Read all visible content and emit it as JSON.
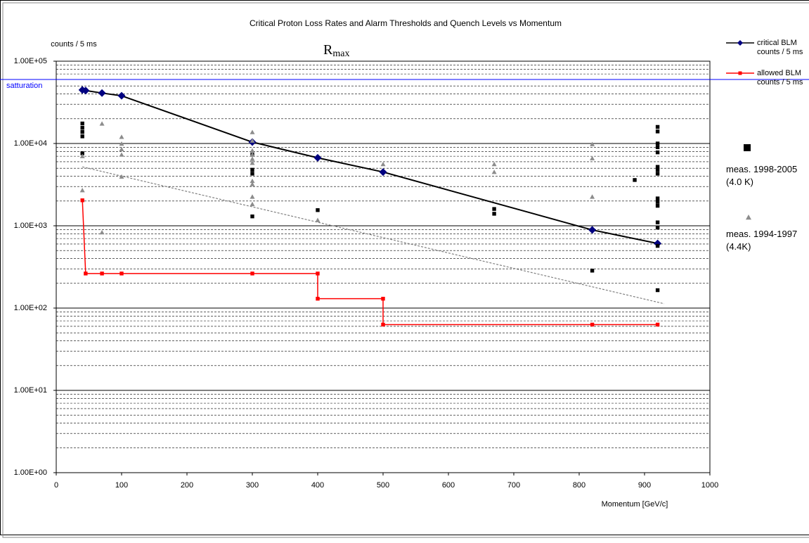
{
  "chart_data": {
    "type": "scatter",
    "title": "Critical Proton Loss Rates and Alarm Thresholds and Quench Levels vs Momentum",
    "subtitle": {
      "base": "R",
      "sub": "max"
    },
    "y_label": "counts / 5 ms",
    "x_label": "Momentum [GeV/c]",
    "xlim": [
      0,
      1000
    ],
    "xticks": [
      0,
      100,
      200,
      300,
      400,
      500,
      600,
      700,
      800,
      900,
      1000
    ],
    "ylim": [
      1,
      100000
    ],
    "log_y": true,
    "grid": true,
    "yticks": [
      {
        "value": 1,
        "label": "1.00E+00"
      },
      {
        "value": 10,
        "label": "1.00E+01"
      },
      {
        "value": 100,
        "label": "1.00E+02"
      },
      {
        "value": 1000,
        "label": "1.00E+03"
      },
      {
        "value": 10000,
        "label": "1.00E+04"
      },
      {
        "value": 100000,
        "label": "1.00E+05"
      }
    ],
    "yminor_ticks": [
      2,
      3,
      4,
      5,
      6,
      7,
      8,
      9,
      20,
      30,
      40,
      50,
      60,
      70,
      80,
      90,
      200,
      300,
      400,
      500,
      600,
      700,
      800,
      900,
      2000,
      3000,
      4000,
      5000,
      6000,
      7000,
      8000,
      9000,
      20000,
      30000,
      40000,
      50000,
      60000,
      70000,
      80000,
      90000
    ],
    "saturation": {
      "text": "satturation",
      "value": 60000,
      "color": "#0000ff"
    },
    "trendline": {
      "x": [
        40,
        930
      ],
      "values": [
        5200,
        113
      ],
      "color": "#808080"
    },
    "legend": "right",
    "series": [
      {
        "name": "critical BLM counts / 5 ms",
        "color": "#000080",
        "line_color": "#000000",
        "marker": "diamond",
        "line": true,
        "x": [
          40,
          45,
          70,
          100,
          300,
          400,
          500,
          820,
          920
        ],
        "values": [
          44700,
          44000,
          41000,
          38000,
          10400,
          6700,
          4500,
          890,
          610
        ]
      },
      {
        "name": "allowed BLM counts / 5 ms",
        "color": "#ff0000",
        "line_color": "#ff0000",
        "marker": "square",
        "line": true,
        "x": [
          40,
          45,
          70,
          100,
          300,
          400,
          400,
          500,
          500,
          820,
          920
        ],
        "values": [
          2040,
          263,
          263,
          263,
          263,
          263,
          130,
          130,
          63,
          63,
          63
        ]
      },
      {
        "name": "meas. 1998-2005 (4.0 K)",
        "color": "#000000",
        "marker": "square",
        "line": false,
        "x": [
          40,
          40,
          40,
          40,
          40,
          300,
          300,
          300,
          300,
          400,
          670,
          670,
          820,
          885,
          920,
          920,
          920,
          920,
          920,
          920,
          920,
          920,
          920,
          920,
          920,
          920,
          920,
          920,
          920
        ],
        "values": [
          17500,
          15500,
          13800,
          12200,
          7600,
          7300,
          4800,
          4300,
          1300,
          1550,
          1600,
          1400,
          285,
          3600,
          15900,
          14000,
          10000,
          9000,
          7800,
          5200,
          4800,
          4300,
          2150,
          1950,
          1750,
          1100,
          950,
          570,
          165
        ]
      },
      {
        "name": "meas. 1994-1997 (4.4K)",
        "color": "#8c8c8c",
        "marker": "triangle",
        "line": false,
        "x": [
          40,
          40,
          70,
          70,
          100,
          100,
          100,
          100,
          100,
          300,
          300,
          300,
          300,
          300,
          300,
          300,
          300,
          300,
          300,
          400,
          500,
          670,
          670,
          820,
          820,
          820
        ],
        "values": [
          2700,
          7000,
          17400,
          830,
          12000,
          9900,
          8500,
          7300,
          3950,
          13700,
          10800,
          8200,
          7300,
          6500,
          5800,
          3500,
          3200,
          2250,
          1830,
          1170,
          5600,
          5600,
          4500,
          9800,
          6600,
          2250
        ]
      }
    ]
  }
}
